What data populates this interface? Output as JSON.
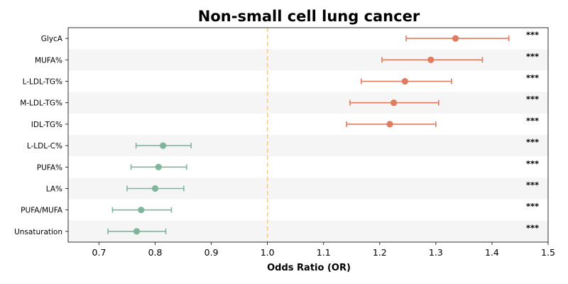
{
  "chart_data": {
    "type": "forest",
    "title": "Non-small cell lung cancer",
    "xlabel": "Odds Ratio (OR)",
    "ylabel": "",
    "xlim": [
      0.645,
      1.5
    ],
    "xticks": [
      "0.7",
      "0.8",
      "0.9",
      "1.0",
      "1.1",
      "1.2",
      "1.3",
      "1.4",
      "1.5"
    ],
    "reference_line": 1.0,
    "grid": false,
    "row_shading": "alternating",
    "colors": {
      "risk": "#e07b5f",
      "protective": "#7fb59b",
      "reference": "#f2c98a",
      "row_band": "#f5f5f5"
    },
    "rows": [
      {
        "label": "GlycA",
        "or": 1.335,
        "lower": 1.247,
        "upper": 1.43,
        "significance": "***"
      },
      {
        "label": "MUFA%",
        "or": 1.291,
        "lower": 1.204,
        "upper": 1.383,
        "significance": "***"
      },
      {
        "label": "L-LDL-TG%",
        "or": 1.245,
        "lower": 1.167,
        "upper": 1.328,
        "significance": "***"
      },
      {
        "label": "M-LDL-TG%",
        "or": 1.225,
        "lower": 1.147,
        "upper": 1.305,
        "significance": "***"
      },
      {
        "label": "IDL-TG%",
        "or": 1.218,
        "lower": 1.141,
        "upper": 1.3,
        "significance": "***"
      },
      {
        "label": "L-LDL-C%",
        "or": 0.814,
        "lower": 0.766,
        "upper": 0.864,
        "significance": "***"
      },
      {
        "label": "PUFA%",
        "or": 0.806,
        "lower": 0.757,
        "upper": 0.856,
        "significance": "***"
      },
      {
        "label": "LA%",
        "or": 0.8,
        "lower": 0.75,
        "upper": 0.851,
        "significance": "***"
      },
      {
        "label": "PUFA/MUFA",
        "or": 0.775,
        "lower": 0.724,
        "upper": 0.829,
        "significance": "***"
      },
      {
        "label": "Unsaturation",
        "or": 0.767,
        "lower": 0.716,
        "upper": 0.819,
        "significance": "***"
      }
    ]
  }
}
